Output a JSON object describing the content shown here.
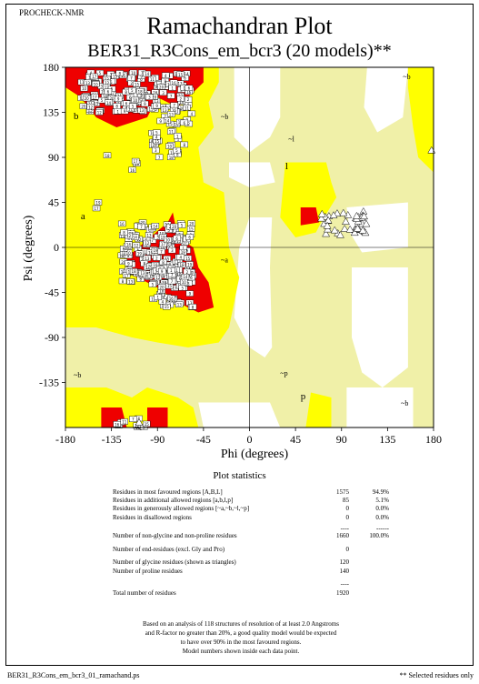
{
  "header": {
    "program": "PROCHECK-NMR",
    "title": "Ramachandran Plot",
    "subtitle": "BER31_R3Cons_em_bcr3 (20 models)**"
  },
  "chart_data": {
    "type": "scatter",
    "xlabel": "Phi (degrees)",
    "ylabel": "Psi (degrees)",
    "xlim": [
      -180,
      180
    ],
    "ylim": [
      -180,
      180
    ],
    "xticks": [
      "-180",
      "-135",
      "-90",
      "-45",
      "0",
      "45",
      "90",
      "135",
      "180"
    ],
    "yticks": [
      "180",
      "135",
      "90",
      "45",
      "0",
      "-45",
      "-90",
      "-135"
    ],
    "region_labels": [
      "b",
      "a",
      "~b",
      "~l",
      "l",
      "~a",
      "~p",
      "p",
      "~b",
      "~b",
      "~b"
    ],
    "region_colors": {
      "core": "#ef0000",
      "allowed": "#ffff00",
      "generous": "#f0f0a8",
      "disallowed": "#ffffff"
    },
    "residue_marker_labels": [
      "19",
      "17",
      "16",
      "18",
      "3",
      "12",
      "15",
      "4",
      "7",
      "11",
      "2",
      "14",
      "20",
      "8",
      "1",
      "13",
      "5",
      "10",
      "6",
      "9"
    ],
    "glycine_marker": "triangle"
  },
  "statistics": {
    "heading": "Plot statistics",
    "rows": [
      {
        "label": "Residues in most favoured regions  [A,B,L]",
        "count": "1575",
        "pct": "94.9%"
      },
      {
        "label": "Residues in additional allowed regions  [a,b,l,p]",
        "count": "85",
        "pct": "5.1%"
      },
      {
        "label": "Residues in generously allowed regions  [~a,~b,~l,~p]",
        "count": "0",
        "pct": "0.0%"
      },
      {
        "label": "Residues in disallowed regions",
        "count": "0",
        "pct": "0.0%"
      },
      {
        "label": "",
        "count": "----",
        "pct": "------"
      },
      {
        "label": "Number of non-glycine and non-proline residues",
        "count": "1660",
        "pct": "100.0%"
      },
      {
        "label": "Number of end-residues (excl. Gly and Pro)",
        "count": "0",
        "pct": ""
      },
      {
        "label": "Number of glycine residues (shown as triangles)",
        "count": "120",
        "pct": ""
      },
      {
        "label": "Number of proline residues",
        "count": "140",
        "pct": ""
      },
      {
        "label": "",
        "count": "----",
        "pct": ""
      },
      {
        "label": "Total number of residues",
        "count": "1920",
        "pct": ""
      }
    ],
    "note": [
      "Based on an analysis of 118 structures of resolution of at least 2.0 Angstroms",
      "and R-factor no greater than 20%, a good quality model would be expected",
      "to have over 90% in the most favoured regions.",
      "Model numbers shown inside each data point."
    ]
  },
  "footer": {
    "file": "BER31_R3Cons_em_bcr3_01_ramachand.ps",
    "selected": "** Selected residues only"
  }
}
